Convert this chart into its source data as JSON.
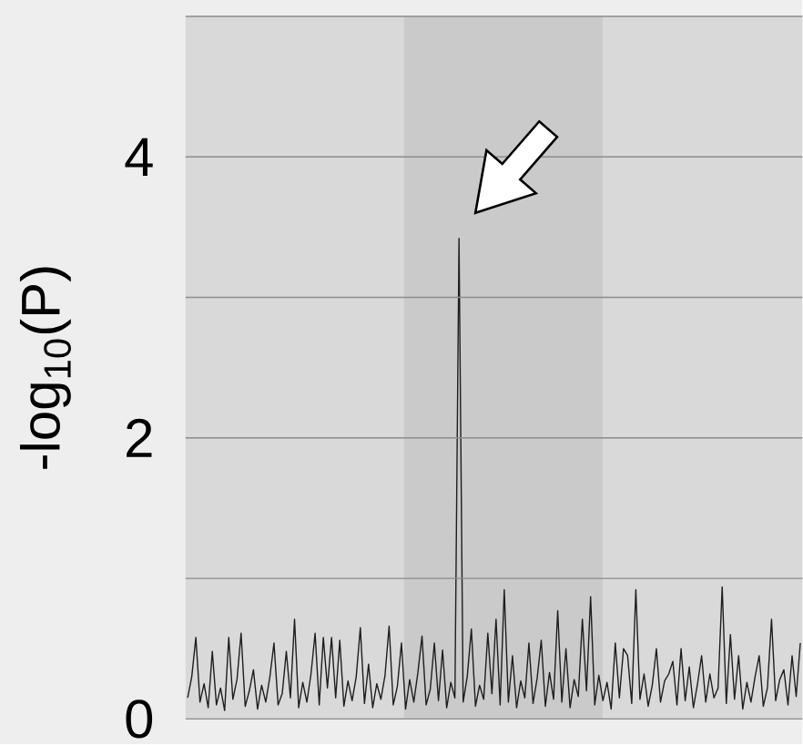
{
  "chart_data": {
    "type": "line",
    "ylabel": "-log$_{10}$(P)",
    "categories": [
      null,
      null,
      null,
      null,
      null,
      null,
      null,
      null,
      null,
      null,
      null,
      null,
      null,
      null,
      null,
      null,
      null,
      null,
      null,
      null,
      null,
      null,
      null,
      null,
      null,
      null,
      null,
      null,
      null,
      null,
      null,
      null,
      null,
      null,
      null,
      null,
      null,
      null,
      null,
      null,
      null,
      null,
      null,
      null,
      null,
      null,
      null,
      null,
      null,
      null,
      null,
      null,
      null,
      null,
      null,
      null,
      null,
      null,
      null,
      null,
      null,
      null,
      null,
      null,
      null,
      null,
      null,
      null,
      null,
      null,
      null,
      null,
      null,
      null,
      null,
      null,
      null,
      null,
      null,
      null,
      null,
      null,
      null,
      null,
      null,
      null,
      null,
      null,
      null,
      null,
      null,
      null,
      null,
      null,
      null,
      null,
      null,
      null,
      null,
      null,
      null,
      null,
      null,
      null,
      null,
      null,
      null,
      null,
      null,
      null,
      null,
      null,
      null,
      null,
      null,
      null,
      null,
      null,
      null,
      null,
      null,
      null,
      null,
      null,
      null,
      null,
      null,
      null,
      null,
      null,
      null,
      null,
      null,
      null,
      null,
      null,
      null,
      null,
      null,
      null,
      null,
      null,
      null,
      null,
      null,
      null,
      null,
      null,
      null,
      null
    ],
    "values": [
      0.15,
      0.3,
      0.58,
      0.12,
      0.25,
      0.08,
      0.48,
      0.1,
      0.22,
      0.06,
      0.58,
      0.14,
      0.28,
      0.61,
      0.09,
      0.2,
      0.35,
      0.07,
      0.24,
      0.12,
      0.3,
      0.54,
      0.1,
      0.18,
      0.48,
      0.15,
      0.71,
      0.08,
      0.26,
      0.12,
      0.32,
      0.61,
      0.1,
      0.58,
      0.22,
      0.58,
      0.15,
      0.56,
      0.09,
      0.27,
      0.13,
      0.3,
      0.65,
      0.11,
      0.39,
      0.08,
      0.25,
      0.14,
      0.31,
      0.66,
      0.1,
      0.23,
      0.54,
      0.07,
      0.28,
      0.12,
      0.33,
      0.59,
      0.1,
      0.21,
      0.54,
      0.13,
      0.49,
      0.08,
      0.26,
      0.15,
      3.42,
      0.12,
      0.3,
      0.64,
      0.09,
      0.24,
      0.14,
      0.61,
      0.18,
      0.71,
      0.1,
      0.92,
      0.12,
      0.45,
      0.08,
      0.27,
      0.15,
      0.54,
      0.11,
      0.29,
      0.56,
      0.09,
      0.33,
      0.14,
      0.77,
      0.12,
      0.5,
      0.08,
      0.28,
      0.16,
      0.71,
      0.2,
      0.87,
      0.1,
      0.31,
      0.13,
      0.26,
      0.07,
      0.54,
      0.15,
      0.5,
      0.45,
      0.11,
      0.92,
      0.14,
      0.32,
      0.09,
      0.24,
      0.5,
      0.12,
      0.27,
      0.32,
      0.41,
      0.1,
      0.5,
      0.13,
      0.37,
      0.08,
      0.25,
      0.45,
      0.12,
      0.32,
      0.15,
      0.22,
      0.94,
      0.11,
      0.6,
      0.14,
      0.45,
      0.07,
      0.26,
      0.12,
      0.3,
      0.45,
      0.09,
      0.22,
      0.71,
      0.13,
      0.28,
      0.35,
      0.1,
      0.45,
      0.16,
      0.54
    ],
    "color": "#1e1e1e",
    "ylim": [
      0,
      5
    ],
    "yticks": [
      0,
      {
        "value": 1,
        "label": null
      },
      2,
      {
        "value": 3,
        "label": null
      },
      4,
      {
        "value": 5,
        "label": null
      }
    ],
    "grid": "y",
    "tick_labels": "y"
  }
}
